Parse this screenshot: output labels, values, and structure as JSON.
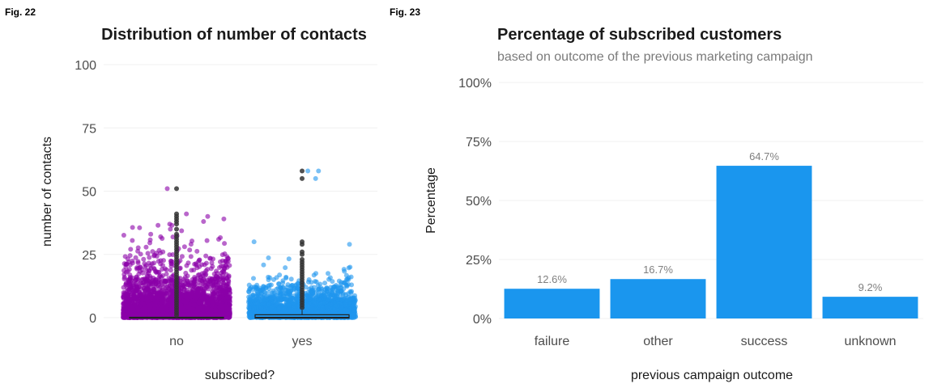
{
  "figures": [
    {
      "label": "Fig. 22"
    },
    {
      "label": "Fig. 23"
    }
  ],
  "chart_data": [
    {
      "type": "scatter",
      "title": "Distribution of number of contacts",
      "xlabel": "subscribed?",
      "ylabel": "number of contacts",
      "categories": [
        "no",
        "yes"
      ],
      "ylim": [
        0,
        100
      ],
      "yticks": [
        0,
        25,
        50,
        75,
        100
      ],
      "grid": true,
      "colors": {
        "no": "#8b00a8",
        "yes": "#1f96ee",
        "boxplot": "#333333"
      },
      "boxplot": [
        {
          "category": "no",
          "q1": 0,
          "median": 0,
          "q3": 0,
          "whisker_low": 0,
          "whisker_high": 0,
          "outliers": [
            1,
            2,
            3,
            4,
            5,
            6,
            7,
            8,
            9,
            10,
            11,
            12,
            13,
            14,
            15,
            16,
            17,
            18,
            19,
            20,
            21,
            22,
            23,
            24,
            25,
            26,
            27,
            28,
            29,
            30,
            31,
            32,
            33,
            35,
            37,
            38,
            39,
            40,
            41,
            51
          ]
        },
        {
          "category": "yes",
          "q1": 0,
          "median": 0,
          "q3": 1,
          "whisker_low": 0,
          "whisker_high": 3,
          "outliers": [
            4,
            5,
            6,
            7,
            8,
            9,
            10,
            11,
            12,
            13,
            14,
            15,
            16,
            17,
            18,
            19,
            20,
            21,
            22,
            23,
            25,
            26,
            29,
            30,
            55,
            58
          ]
        }
      ],
      "extreme_points": {
        "no": [
          51,
          41,
          40,
          39,
          38,
          37,
          35,
          33,
          32,
          31
        ],
        "yes": [
          58,
          58,
          55,
          30,
          29
        ]
      }
    },
    {
      "type": "bar",
      "title": "Percentage of subscribed customers",
      "subtitle": "based on outcome of the previous marketing campaign",
      "xlabel": "previous campaign outcome",
      "ylabel": "Percentage",
      "categories": [
        "failure",
        "other",
        "success",
        "unknown"
      ],
      "values": [
        12.6,
        16.7,
        64.7,
        9.2
      ],
      "data_labels": [
        "12.6%",
        "16.7%",
        "64.7%",
        "9.2%"
      ],
      "ylim": [
        0,
        100
      ],
      "yticks": [
        "0%",
        "25%",
        "50%",
        "75%",
        "100%"
      ],
      "ytick_values": [
        0,
        25,
        50,
        75,
        100
      ],
      "grid": true,
      "colors": {
        "bar": "#1a96ee"
      }
    }
  ]
}
